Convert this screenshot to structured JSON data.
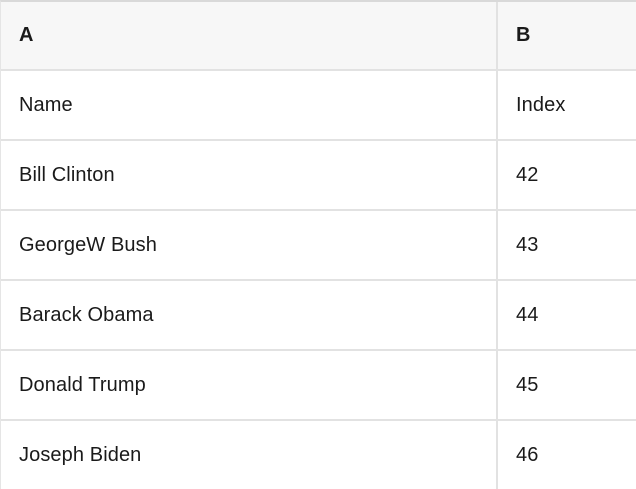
{
  "table": {
    "column_headers": [
      {
        "label": "A"
      },
      {
        "label": "B"
      }
    ],
    "rows": [
      {
        "A": "Name",
        "B": "Index"
      },
      {
        "A": "Bill Clinton",
        "B": "42"
      },
      {
        "A": "GeorgeW Bush",
        "B": "43"
      },
      {
        "A": "Barack Obama",
        "B": "44"
      },
      {
        "A": "Donald Trump",
        "B": "45"
      },
      {
        "A": "Joseph Biden",
        "B": "46"
      }
    ],
    "colors": {
      "header_background": "#f7f7f7",
      "row_background": "#ffffff",
      "grid_border": "#e2e2e2",
      "top_border": "#d9d9d9",
      "text": "#1a1a1a"
    }
  }
}
